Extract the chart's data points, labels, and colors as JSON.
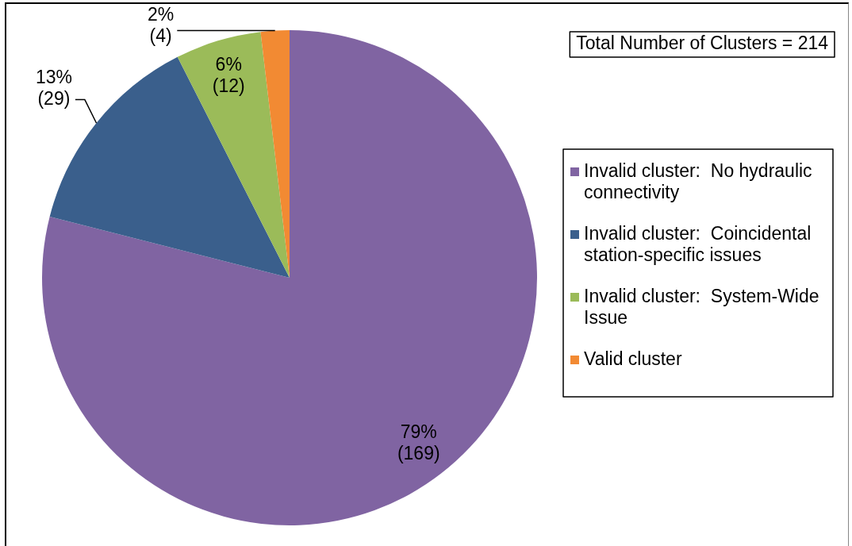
{
  "chart_data": {
    "type": "pie",
    "categories": [
      "Invalid cluster:  No hydraulic connectivity",
      "Invalid cluster:  Coincidental station-specific issues",
      "Invalid cluster:  System-Wide Issue",
      "Valid cluster"
    ],
    "values": [
      169,
      29,
      12,
      4
    ],
    "colors": [
      "#8064a2",
      "#3a5f8c",
      "#9bbb59",
      "#f28a33"
    ],
    "value_labels": [
      "79%\n(169)",
      "13%\n(29)",
      "6%\n(12)",
      "2%\n(4)"
    ],
    "annotations": [
      "Total Number of Clusters = 214"
    ],
    "legend": "right"
  }
}
